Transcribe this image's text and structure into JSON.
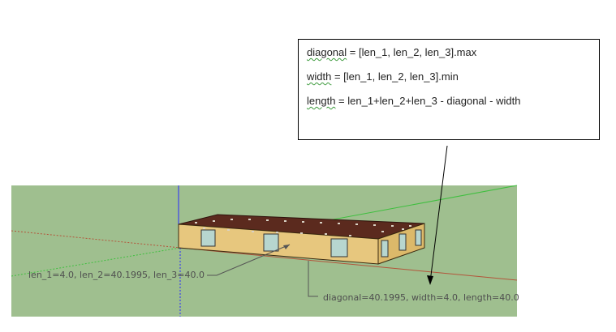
{
  "textbox": {
    "lines": [
      {
        "keyword": "diagonal",
        "rest": " = [len_1, len_2, len_3].max"
      },
      {
        "keyword": "width",
        "rest": " = [len_1, len_2, len_3].min"
      },
      {
        "keyword": "length",
        "rest": " = len_1+len_2+len_3 - diagonal - width"
      }
    ]
  },
  "labels": {
    "lens": "len_1=4.0, len_2=40.1995, len_3=40.0",
    "result": "diagonal=40.1995, width=4.0, length=40.0"
  },
  "colors": {
    "ground": "#9fbf8f",
    "wall": "#e7c77e",
    "roof": "#5b2a1e",
    "window": "#b7d6cf",
    "axis_red": "#b3543a",
    "axis_green": "#3fbf3f",
    "axis_blue": "#2a2aff"
  }
}
